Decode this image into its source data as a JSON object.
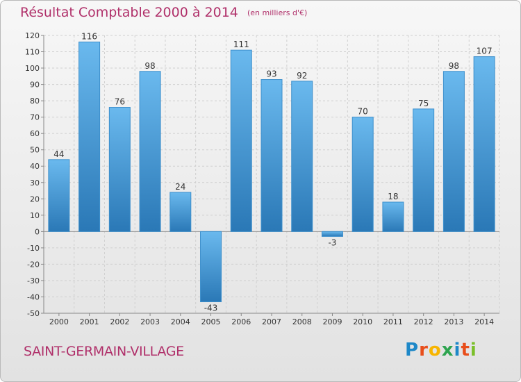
{
  "header": {
    "title": "Résultat Comptable 2000 à 2014",
    "subtitle": "(en milliers d'€)"
  },
  "footer": {
    "place": "SAINT-GERMAIN-VILLAGE",
    "logo_letters": [
      "P",
      "r",
      "o",
      "x",
      "i",
      "t",
      "i"
    ],
    "logo_colors": [
      "#1e88c8",
      "#e84e1b",
      "#f7b500",
      "#2ea44f",
      "#1e88c8",
      "#e84e1b",
      "#7bbf2a"
    ]
  },
  "colors": {
    "bar_light": "#62b3ea",
    "bar_dark": "#2a78b6",
    "title": "#b0306a",
    "grid": "#cfcfcf"
  },
  "chart_data": {
    "type": "bar",
    "categories": [
      "2000",
      "2001",
      "2002",
      "2003",
      "2004",
      "2005",
      "2006",
      "2007",
      "2008",
      "2009",
      "2010",
      "2011",
      "2012",
      "2013",
      "2014"
    ],
    "values": [
      44,
      116,
      76,
      98,
      24,
      -43,
      111,
      93,
      92,
      -3,
      70,
      18,
      75,
      98,
      107
    ],
    "ylim": [
      -50,
      120
    ],
    "yticks": [
      -50,
      -40,
      -30,
      -20,
      -10,
      0,
      10,
      20,
      30,
      40,
      50,
      60,
      70,
      80,
      90,
      100,
      110,
      120
    ],
    "grid": true
  }
}
